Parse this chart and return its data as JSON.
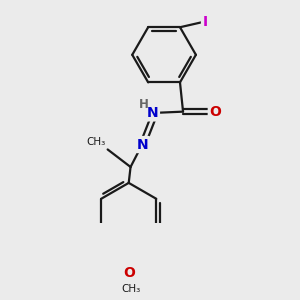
{
  "bg_color": "#ebebeb",
  "bond_color": "#1a1a1a",
  "bond_width": 1.6,
  "atom_colors": {
    "I": "#cc00cc",
    "N": "#0000cc",
    "O": "#cc0000",
    "H": "#666666",
    "C": "#1a1a1a"
  },
  "font_size_atom": 10,
  "font_size_small": 8.5
}
